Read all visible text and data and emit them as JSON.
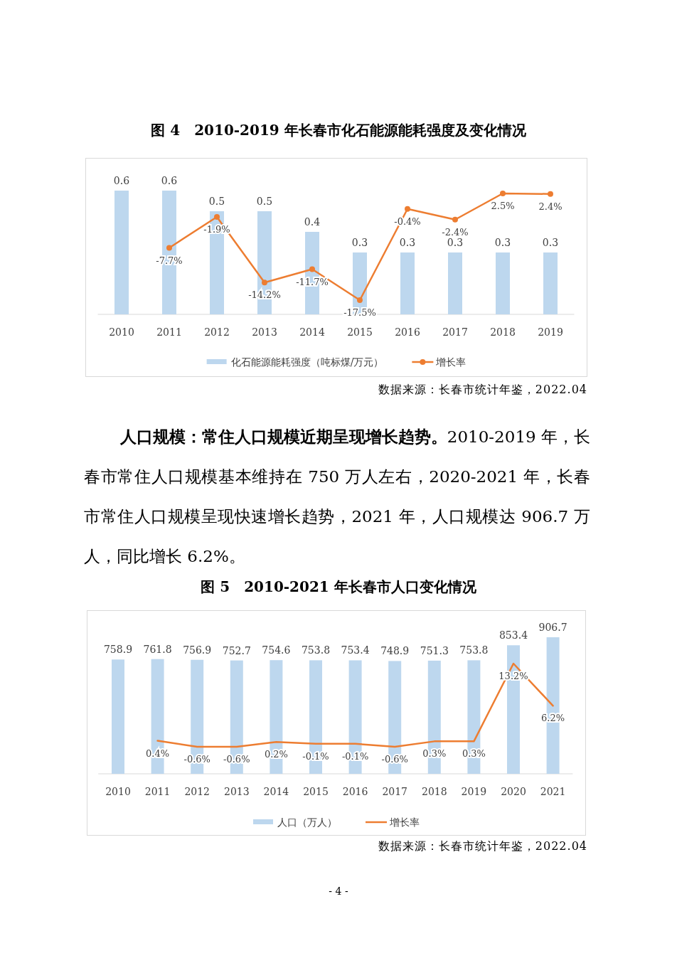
{
  "chart_data": [
    {
      "type": "bar",
      "title": "图 4　2010-2019 年长春市化石能源能耗强度及变化情况",
      "categories": [
        "2010",
        "2011",
        "2012",
        "2013",
        "2014",
        "2015",
        "2016",
        "2017",
        "2018",
        "2019"
      ],
      "series": [
        {
          "name": "化石能源能耗强度（吨标煤/万元）",
          "color": "#bdd7ee",
          "values": [
            0.6,
            0.6,
            0.5,
            0.5,
            0.4,
            0.3,
            0.3,
            0.3,
            0.3,
            0.3
          ]
        },
        {
          "name": "增长率",
          "type": "line",
          "axis": "y2",
          "color": "#ed7d31",
          "values": [
            null,
            -7.7,
            -1.9,
            -14.2,
            -11.7,
            -17.5,
            -0.4,
            -2.4,
            2.5,
            2.4
          ],
          "value_labels": [
            null,
            "-7.7%",
            "-1.9%",
            "-14.2%",
            "-11.7%",
            "-17.5%",
            "-0.4%",
            "-2.4%",
            "2.5%",
            "2.4%"
          ]
        }
      ],
      "data_labels": true,
      "tick_labels": "x",
      "legend": "bottom",
      "marker": "circle",
      "line_style": "solid",
      "annotations": [
        "数据来源：长春市统计年鉴，2022.04",
        "人口规模：常住人口规模近期呈现增长趋势。",
        "2010-2019 年，长春市常住人口规模基本维持在 750 万人左右，2020-2021 年，长春市常住人口规模呈现快速增长趋势，2021 年，人口规模达 906.7 万人，同比增长 6.2%。"
      ]
    },
    {
      "type": "bar",
      "title": "图 5　2010-2021 年长春市人口变化情况",
      "categories": [
        "2010",
        "2011",
        "2012",
        "2013",
        "2014",
        "2015",
        "2016",
        "2017",
        "2018",
        "2019",
        "2020",
        "2021"
      ],
      "series": [
        {
          "name": "人口（万人）",
          "color": "#bdd7ee",
          "values": [
            758.9,
            761.8,
            756.9,
            752.7,
            754.6,
            753.8,
            753.4,
            748.9,
            751.3,
            753.8,
            853.4,
            906.7
          ]
        },
        {
          "name": "增长率",
          "type": "line",
          "axis": "y2",
          "color": "#ed7d31",
          "values": [
            null,
            0.4,
            -0.6,
            -0.6,
            0.2,
            -0.1,
            -0.1,
            -0.6,
            0.3,
            0.3,
            13.2,
            6.2
          ],
          "value_labels": [
            null,
            "0.4%",
            "-0.6%",
            "-0.6%",
            "0.2%",
            "-0.1%",
            "-0.1%",
            "-0.6%",
            "0.3%",
            "0.3%",
            "13.2%",
            "6.2%"
          ]
        }
      ],
      "data_labels": true,
      "tick_labels": "x",
      "legend": "bottom",
      "marker": "none",
      "line_style": "solid",
      "annotations": [
        "数据来源：长春市统计年鉴，2022.04",
        "- 4 -"
      ]
    }
  ]
}
